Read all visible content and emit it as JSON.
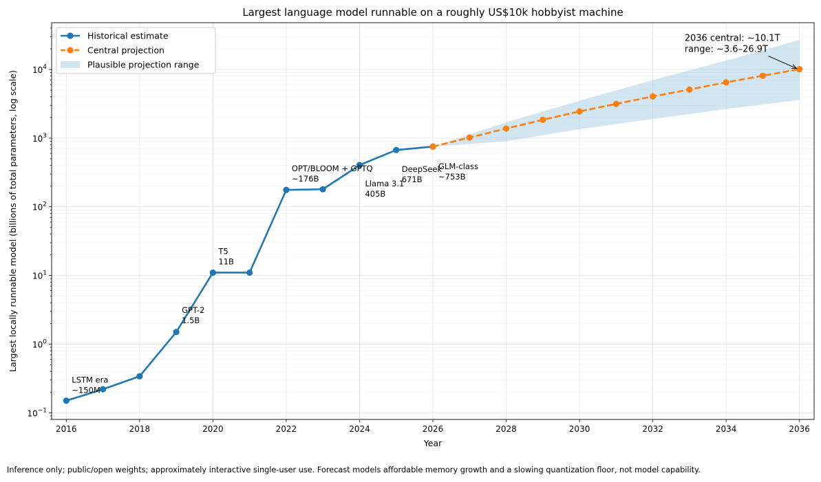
{
  "chart_data": {
    "type": "line",
    "title": "Largest language model runnable on a roughly US$10k hobbyist machine",
    "xlabel": "Year",
    "ylabel": "Largest locally runnable model (billions of total parameters, log scale)",
    "yscale": "log",
    "xlim": [
      2015.6,
      2036.4
    ],
    "ylim": [
      0.08,
      48000
    ],
    "x_ticks": [
      "2016",
      "2018",
      "2020",
      "2022",
      "2024",
      "2026",
      "2028",
      "2030",
      "2032",
      "2034",
      "2036"
    ],
    "y_ticks": [
      {
        "base": "10",
        "exp": "−1",
        "value": 0.1
      },
      {
        "base": "10",
        "exp": "0",
        "value": 1
      },
      {
        "base": "10",
        "exp": "1",
        "value": 10
      },
      {
        "base": "10",
        "exp": "2",
        "value": 100
      },
      {
        "base": "10",
        "exp": "3",
        "value": 1000
      },
      {
        "base": "10",
        "exp": "4",
        "value": 10000
      }
    ],
    "grid": true,
    "legend_position": "top-left",
    "series": [
      {
        "name": "Historical estimate",
        "color": "#1f77b4",
        "style": "solid",
        "x": [
          2016,
          2017,
          2018,
          2019,
          2020,
          2021,
          2022,
          2023,
          2024,
          2025,
          2026
        ],
        "y": [
          0.15,
          0.22,
          0.34,
          1.5,
          11,
          11,
          176,
          180,
          405,
          671,
          753
        ]
      },
      {
        "name": "Central projection",
        "color": "#ff7f0e",
        "style": "dashed",
        "x": [
          2026,
          2027,
          2028,
          2029,
          2030,
          2031,
          2032,
          2033,
          2034,
          2035,
          2036
        ],
        "y": [
          753,
          1020,
          1380,
          1850,
          2450,
          3150,
          4050,
          5100,
          6500,
          8100,
          10100
        ]
      }
    ],
    "band": {
      "name": "Plausible projection range",
      "color": "#a6cde3",
      "x": [
        2026,
        2028,
        2030,
        2032,
        2034,
        2036
      ],
      "low": [
        753,
        900,
        1350,
        1900,
        2650,
        3600
      ],
      "high": [
        753,
        1700,
        3500,
        7000,
        13500,
        26900
      ]
    },
    "annotations": [
      {
        "x": 2016,
        "y": 0.15,
        "lines": [
          "LSTM era",
          "~150M"
        ]
      },
      {
        "x": 2019,
        "y": 1.5,
        "lines": [
          "GPT-2",
          "1.5B"
        ]
      },
      {
        "x": 2020,
        "y": 11,
        "lines": [
          "T5",
          "11B"
        ]
      },
      {
        "x": 2022,
        "y": 176,
        "lines": [
          "OPT/BLOOM + GPTQ",
          "~176B"
        ]
      },
      {
        "x": 2024,
        "y": 405,
        "lines": [
          "Llama 3.1",
          "405B"
        ]
      },
      {
        "x": 2025,
        "y": 671,
        "lines": [
          "DeepSeek",
          "671B"
        ]
      },
      {
        "x": 2026,
        "y": 753,
        "lines": [
          "GLM-class",
          "~753B"
        ]
      }
    ],
    "arrow_annotation": {
      "x": 2036,
      "y": 10100,
      "lines": [
        "2036 central: ~10.1T",
        "range: ~3.6–26.9T"
      ]
    }
  },
  "footnote": "Inference only; public/open weights; approximately interactive single-user use. Forecast models affordable memory growth and a slowing quantization floor, not model capability."
}
